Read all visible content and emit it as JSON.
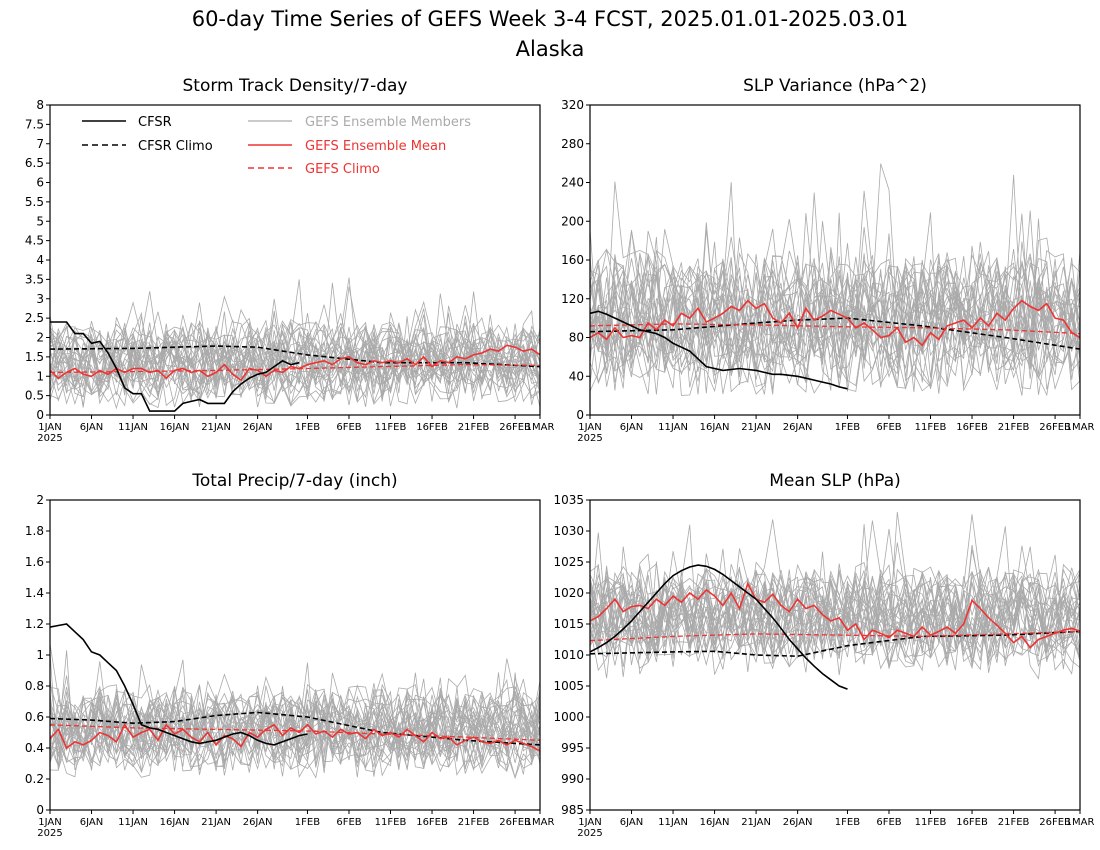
{
  "title_line1": "60-day Time Series of GEFS Week 3-4 FCST, 2025.01.01-2025.03.01",
  "title_line2": "Alaska",
  "colors": {
    "cfsr": "#000000",
    "members": "#aaaaaa",
    "ens_mean": "#ee3333",
    "gefs_climo": "#ee3333"
  },
  "legend": {
    "cfsr": "CFSR",
    "cfsr_climo": "CFSR Climo",
    "members": "GEFS Ensemble Members",
    "ens_mean": "GEFS Ensemble Mean",
    "gefs_climo": "GEFS Climo"
  },
  "x_ticks": [
    "1JAN",
    "6JAN",
    "11JAN",
    "16JAN",
    "21JAN",
    "26JAN",
    "1FEB",
    "6FEB",
    "11FEB",
    "16FEB",
    "21FEB",
    "26FEB",
    "1MAR"
  ],
  "x_tick_days": [
    0,
    5,
    10,
    15,
    20,
    25,
    31,
    36,
    41,
    46,
    51,
    56,
    59
  ],
  "x_year": "2025",
  "chart_data": [
    {
      "type": "line",
      "title": "Storm Track Density/7-day",
      "ylim": [
        0,
        8
      ],
      "yticks": [
        "0",
        "0.5",
        "1",
        "1.5",
        "2",
        "2.5",
        "3",
        "3.5",
        "4",
        "4.5",
        "5",
        "5.5",
        "6",
        "6.5",
        "7",
        "7.5",
        "8"
      ],
      "ytick_values": [
        0,
        0.5,
        1,
        1.5,
        2,
        2.5,
        3,
        3.5,
        4,
        4.5,
        5,
        5.5,
        6,
        6.5,
        7,
        7.5,
        8
      ],
      "members_spread": {
        "center": 1.3,
        "amplitude": 1.1,
        "floor": 0
      },
      "series": [
        {
          "name": "CFSR",
          "x": [
            0,
            1,
            2,
            3,
            4,
            5,
            6,
            7,
            8,
            9,
            10,
            11,
            12,
            13,
            14,
            15,
            16,
            17,
            18,
            19,
            20,
            21,
            22,
            23,
            24,
            25,
            26,
            27,
            28,
            29,
            30
          ],
          "values": [
            2.4,
            2.4,
            2.4,
            2.1,
            2.1,
            1.85,
            1.9,
            1.6,
            1.2,
            0.7,
            0.55,
            0.55,
            0.1,
            0.1,
            0.1,
            0.1,
            0.3,
            0.35,
            0.4,
            0.3,
            0.3,
            0.3,
            0.6,
            0.8,
            0.95,
            1.05,
            1.1,
            1.25,
            1.4,
            1.3,
            1.35
          ]
        },
        {
          "name": "CFSR Climo",
          "x": [
            0,
            10,
            20,
            25,
            31,
            40,
            50,
            59
          ],
          "values": [
            1.7,
            1.72,
            1.78,
            1.75,
            1.55,
            1.35,
            1.35,
            1.25
          ]
        },
        {
          "name": "GEFS Ensemble Mean",
          "x": [
            0,
            1,
            2,
            3,
            4,
            5,
            6,
            7,
            8,
            9,
            10,
            11,
            12,
            13,
            14,
            15,
            16,
            17,
            18,
            19,
            20,
            21,
            22,
            23,
            24,
            25,
            26,
            27,
            28,
            29,
            30,
            31,
            32,
            33,
            34,
            35,
            36,
            37,
            38,
            39,
            40,
            41,
            42,
            43,
            44,
            45,
            46,
            47,
            48,
            49,
            50,
            51,
            52,
            53,
            54,
            55,
            56,
            57,
            58,
            59
          ],
          "values": [
            1.15,
            0.95,
            1.1,
            1.2,
            1.05,
            1.0,
            1.15,
            1.05,
            1.2,
            1.1,
            1.2,
            1.2,
            1.1,
            1.15,
            0.95,
            1.15,
            1.2,
            1.1,
            1.15,
            1.0,
            1.1,
            1.3,
            1.05,
            0.9,
            1.2,
            1.15,
            1.0,
            1.15,
            1.1,
            1.25,
            1.2,
            1.3,
            1.35,
            1.4,
            1.3,
            1.45,
            1.5,
            1.35,
            1.3,
            1.4,
            1.35,
            1.4,
            1.35,
            1.45,
            1.3,
            1.5,
            1.25,
            1.4,
            1.35,
            1.5,
            1.45,
            1.55,
            1.6,
            1.7,
            1.65,
            1.8,
            1.75,
            1.65,
            1.7,
            1.55
          ]
        },
        {
          "name": "GEFS Climo",
          "x": [
            0,
            10,
            20,
            31,
            40,
            50,
            59
          ],
          "values": [
            1.1,
            1.12,
            1.15,
            1.2,
            1.25,
            1.3,
            1.28
          ]
        }
      ]
    },
    {
      "type": "line",
      "title": "SLP Variance (hPa^2)",
      "ylim": [
        0,
        320
      ],
      "yticks": [
        "0",
        "40",
        "80",
        "120",
        "160",
        "200",
        "240",
        "280",
        "320"
      ],
      "ytick_values": [
        0,
        40,
        80,
        120,
        160,
        200,
        240,
        280,
        320
      ],
      "members_spread": {
        "center": 95,
        "amplitude": 75,
        "floor": 20
      },
      "series": [
        {
          "name": "CFSR",
          "x": [
            0,
            1,
            2,
            3,
            4,
            5,
            6,
            7,
            8,
            9,
            10,
            11,
            12,
            13,
            14,
            15,
            16,
            17,
            18,
            19,
            20,
            21,
            22,
            23,
            24,
            25,
            26,
            27,
            28,
            29,
            30,
            31
          ],
          "values": [
            105,
            107,
            104,
            100,
            96,
            92,
            88,
            86,
            84,
            80,
            74,
            70,
            66,
            58,
            50,
            48,
            46,
            47,
            48,
            47,
            46,
            44,
            42,
            42,
            41,
            40,
            38,
            36,
            34,
            32,
            29,
            27
          ]
        },
        {
          "name": "CFSR Climo",
          "x": [
            0,
            10,
            20,
            25,
            31,
            40,
            50,
            59
          ],
          "values": [
            86,
            88,
            95,
            98,
            100,
            92,
            80,
            68
          ]
        },
        {
          "name": "GEFS Ensemble Mean",
          "x": [
            0,
            1,
            2,
            3,
            4,
            5,
            6,
            7,
            8,
            9,
            10,
            11,
            12,
            13,
            14,
            15,
            16,
            17,
            18,
            19,
            20,
            21,
            22,
            23,
            24,
            25,
            26,
            27,
            28,
            29,
            30,
            31,
            32,
            33,
            34,
            35,
            36,
            37,
            38,
            39,
            40,
            41,
            42,
            43,
            44,
            45,
            46,
            47,
            48,
            49,
            50,
            51,
            52,
            53,
            54,
            55,
            56,
            57,
            58,
            59
          ],
          "values": [
            80,
            85,
            78,
            90,
            80,
            82,
            80,
            95,
            88,
            98,
            92,
            105,
            100,
            110,
            96,
            100,
            105,
            112,
            108,
            118,
            110,
            115,
            100,
            95,
            105,
            90,
            110,
            98,
            102,
            108,
            104,
            100,
            90,
            95,
            88,
            80,
            82,
            90,
            75,
            80,
            72,
            85,
            78,
            92,
            95,
            98,
            90,
            100,
            92,
            105,
            98,
            110,
            118,
            112,
            108,
            115,
            100,
            98,
            85,
            80
          ]
        },
        {
          "name": "GEFS Climo",
          "x": [
            0,
            10,
            20,
            31,
            40,
            50,
            59
          ],
          "values": [
            92,
            94,
            93,
            91,
            90,
            88,
            84
          ]
        }
      ]
    },
    {
      "type": "line",
      "title": "Total Precip/7-day (inch)",
      "ylim": [
        0,
        2
      ],
      "yticks": [
        "0",
        "0.2",
        "0.4",
        "0.6",
        "0.8",
        "1",
        "1.2",
        "1.4",
        "1.6",
        "1.8",
        "2"
      ],
      "ytick_values": [
        0,
        0.2,
        0.4,
        0.6,
        0.8,
        1.0,
        1.2,
        1.4,
        1.6,
        1.8,
        2.0
      ],
      "members_spread": {
        "center": 0.5,
        "amplitude": 0.3,
        "floor": 0.08
      },
      "series": [
        {
          "name": "CFSR",
          "x": [
            0,
            1,
            2,
            3,
            4,
            5,
            6,
            7,
            8,
            9,
            10,
            11,
            12,
            13,
            14,
            15,
            16,
            17,
            18,
            19,
            20,
            21,
            22,
            23,
            24,
            25,
            26,
            27,
            28,
            29,
            30,
            31
          ],
          "values": [
            1.18,
            1.19,
            1.2,
            1.15,
            1.1,
            1.02,
            1.0,
            0.95,
            0.9,
            0.8,
            0.68,
            0.55,
            0.53,
            0.52,
            0.5,
            0.48,
            0.46,
            0.44,
            0.43,
            0.44,
            0.45,
            0.47,
            0.49,
            0.5,
            0.48,
            0.45,
            0.43,
            0.42,
            0.44,
            0.46,
            0.48,
            0.49
          ]
        },
        {
          "name": "CFSR Climo",
          "x": [
            0,
            5,
            10,
            15,
            20,
            25,
            31,
            40,
            50,
            59
          ],
          "values": [
            0.59,
            0.58,
            0.56,
            0.57,
            0.61,
            0.63,
            0.6,
            0.5,
            0.45,
            0.42
          ]
        },
        {
          "name": "GEFS Ensemble Mean",
          "x": [
            0,
            1,
            2,
            3,
            4,
            5,
            6,
            7,
            8,
            9,
            10,
            11,
            12,
            13,
            14,
            15,
            16,
            17,
            18,
            19,
            20,
            21,
            22,
            23,
            24,
            25,
            26,
            27,
            28,
            29,
            30,
            31,
            32,
            33,
            34,
            35,
            36,
            37,
            38,
            39,
            40,
            41,
            42,
            43,
            44,
            45,
            46,
            47,
            48,
            49,
            50,
            51,
            52,
            53,
            54,
            55,
            56,
            57,
            58,
            59
          ],
          "values": [
            0.46,
            0.52,
            0.4,
            0.44,
            0.42,
            0.45,
            0.5,
            0.48,
            0.44,
            0.55,
            0.47,
            0.5,
            0.52,
            0.45,
            0.55,
            0.49,
            0.52,
            0.47,
            0.44,
            0.5,
            0.42,
            0.48,
            0.46,
            0.41,
            0.5,
            0.47,
            0.52,
            0.55,
            0.48,
            0.53,
            0.5,
            0.55,
            0.49,
            0.51,
            0.47,
            0.52,
            0.49,
            0.5,
            0.46,
            0.52,
            0.48,
            0.5,
            0.47,
            0.52,
            0.48,
            0.44,
            0.5,
            0.46,
            0.47,
            0.42,
            0.45,
            0.47,
            0.44,
            0.43,
            0.45,
            0.42,
            0.45,
            0.43,
            0.41,
            0.38
          ]
        },
        {
          "name": "GEFS Climo",
          "x": [
            0,
            10,
            20,
            31,
            40,
            50,
            59
          ],
          "values": [
            0.55,
            0.53,
            0.52,
            0.51,
            0.49,
            0.47,
            0.45
          ]
        }
      ]
    },
    {
      "type": "line",
      "title": "Mean SLP (hPa)",
      "ylim": [
        985,
        1035
      ],
      "yticks": [
        "985",
        "990",
        "995",
        "1000",
        "1005",
        "1010",
        "1015",
        "1020",
        "1025",
        "1030",
        "1035"
      ],
      "ytick_values": [
        985,
        990,
        995,
        1000,
        1005,
        1010,
        1015,
        1020,
        1025,
        1030,
        1035
      ],
      "members_spread": {
        "center": 1015.5,
        "amplitude": 9,
        "floor": 998
      },
      "series": [
        {
          "name": "CFSR",
          "x": [
            0,
            1,
            2,
            3,
            4,
            5,
            6,
            7,
            8,
            9,
            10,
            11,
            12,
            13,
            14,
            15,
            16,
            17,
            18,
            19,
            20,
            21,
            22,
            23,
            24,
            25,
            26,
            27,
            28,
            29,
            30,
            31
          ],
          "values": [
            1010.5,
            1011.2,
            1012,
            1013,
            1014.2,
            1015.5,
            1017,
            1018.5,
            1020,
            1021.5,
            1022.8,
            1023.6,
            1024.2,
            1024.5,
            1024.3,
            1023.8,
            1023,
            1022,
            1021,
            1020,
            1019,
            1017.5,
            1016,
            1014.3,
            1012.5,
            1011,
            1009.5,
            1008.2,
            1007,
            1006,
            1005,
            1004.5
          ]
        },
        {
          "name": "CFSR Climo",
          "x": [
            0,
            10,
            15,
            20,
            25,
            31,
            40,
            50,
            59
          ],
          "values": [
            1010.2,
            1010.5,
            1010.6,
            1010,
            1009.8,
            1011.5,
            1013,
            1013.2,
            1013.8
          ]
        },
        {
          "name": "GEFS Ensemble Mean",
          "x": [
            0,
            1,
            2,
            3,
            4,
            5,
            6,
            7,
            8,
            9,
            10,
            11,
            12,
            13,
            14,
            15,
            16,
            17,
            18,
            19,
            20,
            21,
            22,
            23,
            24,
            25,
            26,
            27,
            28,
            29,
            30,
            31,
            32,
            33,
            34,
            35,
            36,
            37,
            38,
            39,
            40,
            41,
            42,
            43,
            44,
            45,
            46,
            47,
            48,
            49,
            50,
            51,
            52,
            53,
            54,
            55,
            56,
            57,
            58,
            59
          ],
          "values": [
            1015.5,
            1016.2,
            1017.5,
            1019,
            1017,
            1017.8,
            1018,
            1017.5,
            1019,
            1018,
            1019.5,
            1018.5,
            1020,
            1019,
            1020.5,
            1019.5,
            1018,
            1020,
            1017.5,
            1021.5,
            1019,
            1018.5,
            1019.8,
            1018,
            1017,
            1019,
            1017.5,
            1018,
            1016.5,
            1015.5,
            1016,
            1014,
            1015,
            1012.5,
            1014,
            1013.5,
            1012.8,
            1014,
            1013.5,
            1013,
            1014.5,
            1013.2,
            1013.8,
            1014.5,
            1013.5,
            1015,
            1018.8,
            1017.5,
            1016,
            1014.8,
            1013.5,
            1012,
            1013,
            1011.2,
            1012.5,
            1013,
            1013.5,
            1014,
            1014.3,
            1013.8
          ]
        },
        {
          "name": "GEFS Climo",
          "x": [
            0,
            10,
            20,
            31,
            40,
            50,
            59
          ],
          "values": [
            1012.3,
            1013,
            1013.4,
            1013.2,
            1013,
            1013.4,
            1013.8
          ]
        }
      ]
    }
  ]
}
